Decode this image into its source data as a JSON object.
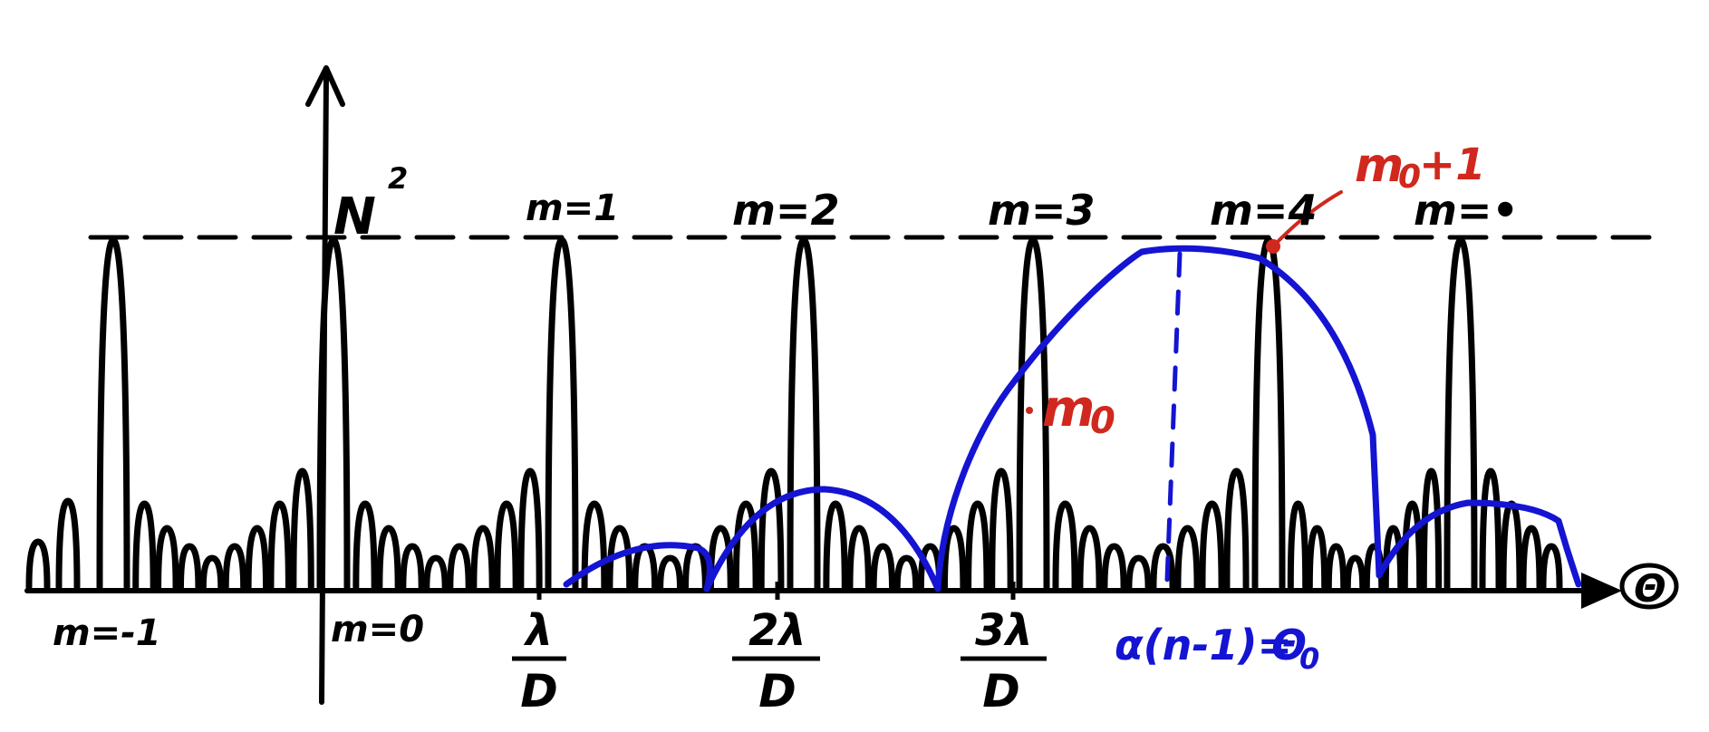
{
  "colors": {
    "ink": "#000000",
    "envelope": "#1414d2",
    "annotation": "#d0281e",
    "background": "#ffffff"
  },
  "axis": {
    "y_label_base": "N",
    "y_label_exp": "2",
    "x_label": "Θ"
  },
  "order_labels": {
    "m_neg1": "m=-1",
    "m_0": "m=0",
    "m_1": "m=1",
    "m_2": "m=2",
    "m_3": "m=3",
    "m_4": "m=4",
    "m_5": "m=•"
  },
  "x_ticks": [
    {
      "num": "λ",
      "den": "D"
    },
    {
      "num": "2λ",
      "den": "D"
    },
    {
      "num": "3λ",
      "den": "D"
    }
  ],
  "annotations": {
    "m0": "m",
    "m0_sub": "0",
    "m0plus1": "m",
    "m0plus1_sub": "0",
    "m0plus1_tail": "+1",
    "blaze_lhs": "α(n-1)=",
    "blaze_rhs": "Θ",
    "blaze_sub": "0"
  }
}
